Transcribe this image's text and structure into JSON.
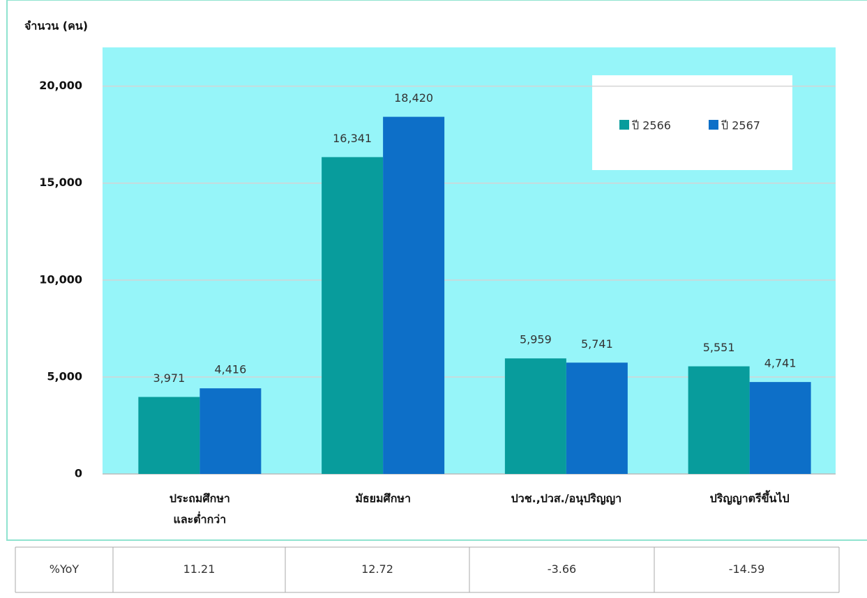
{
  "chart_data": {
    "type": "bar",
    "y_label": "จำนวน (คน)",
    "categories": [
      [
        "ประถมศึกษา",
        "และต่ำกว่า"
      ],
      [
        "มัธยมศึกษา"
      ],
      [
        "ปวช.,ปวส./อนุปริญญา"
      ],
      [
        "ปริญญาตรีขึ้นไป"
      ]
    ],
    "series": [
      {
        "name": "ปี 2566",
        "color": "#089c9c",
        "values": [
          3971,
          16341,
          5959,
          5551
        ],
        "value_labels": [
          "3,971",
          "16,341",
          "5,959",
          "5,551"
        ]
      },
      {
        "name": "ปี 2567",
        "color": "#0d6fc8",
        "values": [
          4416,
          18420,
          5741,
          4741
        ],
        "value_labels": [
          "4,416",
          "18,420",
          "5,741",
          "4,741"
        ]
      }
    ],
    "ylim": [
      0,
      22000
    ],
    "yticks": [
      0,
      {
        "value": 5000,
        "label": "5,000"
      },
      {
        "value": 10000,
        "label": "10,000"
      },
      {
        "value": 15000,
        "label": "15,000"
      },
      {
        "value": 20000,
        "label": "20,000"
      }
    ],
    "grid": true,
    "legend": "upper right"
  },
  "table": {
    "header": "%YoY",
    "values": [
      11.21,
      12.72,
      -3.66,
      -14.59
    ]
  }
}
